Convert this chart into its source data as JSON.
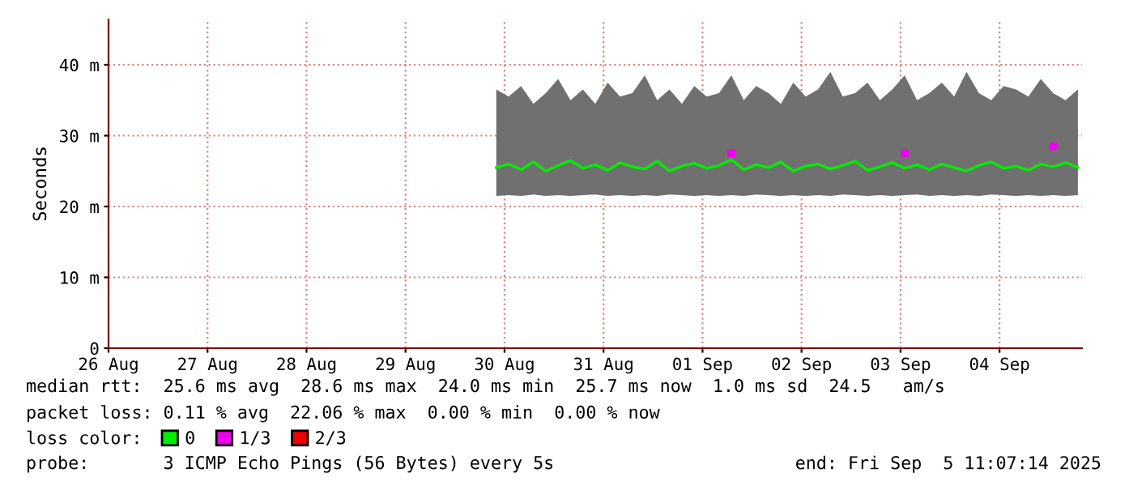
{
  "chart_data": {
    "type": "line",
    "ylabel": "Seconds",
    "x": [
      "2025-08-29T22:00",
      "2025-08-30T01:00",
      "2025-08-30T04:00",
      "2025-08-30T07:00",
      "2025-08-30T10:00",
      "2025-08-30T13:00",
      "2025-08-30T16:00",
      "2025-08-30T19:00",
      "2025-08-30T22:00",
      "2025-08-31T01:00",
      "2025-08-31T04:00",
      "2025-08-31T07:00",
      "2025-08-31T10:00",
      "2025-08-31T13:00",
      "2025-08-31T16:00",
      "2025-08-31T19:00",
      "2025-08-31T22:00",
      "2025-09-01T01:00",
      "2025-09-01T04:00",
      "2025-09-01T07:00",
      "2025-09-01T10:00",
      "2025-09-01T13:00",
      "2025-09-01T16:00",
      "2025-09-01T19:00",
      "2025-09-01T22:00",
      "2025-09-02T01:00",
      "2025-09-02T04:00",
      "2025-09-02T07:00",
      "2025-09-02T10:00",
      "2025-09-02T13:00",
      "2025-09-02T16:00",
      "2025-09-02T19:00",
      "2025-09-02T22:00",
      "2025-09-03T01:00",
      "2025-09-03T04:00",
      "2025-09-03T07:00",
      "2025-09-03T10:00",
      "2025-09-03T13:00",
      "2025-09-03T16:00",
      "2025-09-03T19:00",
      "2025-09-03T22:00",
      "2025-09-04T01:00",
      "2025-09-04T04:00",
      "2025-09-04T07:00",
      "2025-09-04T10:00",
      "2025-09-04T13:00",
      "2025-09-04T16:00",
      "2025-09-04T19:00"
    ],
    "series": [
      {
        "name": "0",
        "color": "#00ee00",
        "values": [
          25.5,
          26.0,
          25.2,
          26.3,
          25.0,
          25.8,
          26.5,
          25.4,
          25.9,
          25.1,
          26.2,
          25.6,
          25.3,
          26.4,
          25.0,
          25.7,
          26.1,
          25.4,
          25.8,
          26.6,
          25.2,
          25.9,
          25.5,
          26.3,
          25.0,
          25.7,
          26.0,
          25.3,
          25.8,
          26.4,
          25.1,
          25.6,
          26.2,
          25.4,
          25.9,
          25.2,
          26.0,
          25.5,
          25.0,
          25.8,
          26.3,
          25.4,
          25.7,
          25.1,
          26.0,
          25.6,
          26.2,
          25.5
        ],
        "lower": [
          21.5,
          21.6,
          21.5,
          21.7,
          21.5,
          21.6,
          21.5,
          21.6,
          21.7,
          21.5,
          21.6,
          21.5,
          21.6,
          21.5,
          21.7,
          21.6,
          21.5,
          21.6,
          21.5,
          21.6,
          21.5,
          21.7,
          21.6,
          21.5,
          21.6,
          21.5,
          21.6,
          21.5,
          21.7,
          21.6,
          21.5,
          21.6,
          21.5,
          21.6,
          21.7,
          21.5,
          21.6,
          21.5,
          21.6,
          21.5,
          21.7,
          21.6,
          21.5,
          21.6,
          21.5,
          21.6,
          21.5,
          21.6
        ],
        "upper": [
          36.5,
          35.5,
          37.0,
          34.5,
          36.0,
          38.0,
          35.0,
          36.5,
          34.5,
          37.5,
          35.5,
          36.0,
          38.5,
          35.0,
          36.5,
          34.5,
          37.0,
          35.5,
          36.0,
          38.5,
          35.0,
          37.0,
          36.0,
          34.5,
          37.5,
          35.5,
          36.5,
          39.0,
          35.5,
          36.0,
          37.5,
          35.0,
          36.5,
          38.5,
          35.0,
          36.0,
          37.5,
          35.5,
          39.0,
          36.0,
          35.0,
          37.0,
          36.5,
          35.5,
          38.0,
          36.0,
          35.0,
          36.5
        ]
      },
      {
        "name": "1/3",
        "color": "#ee00ee",
        "type": "scatter",
        "x": [
          "2025-09-01T07:00",
          "2025-09-03T01:00",
          "2025-09-04T13:00"
        ],
        "values": [
          27.5,
          27.5,
          28.5
        ]
      },
      {
        "name": "2/3",
        "color": "#ee0000",
        "type": "scatter",
        "values": [
          null,
          null,
          null,
          null,
          null,
          null,
          null,
          null,
          null,
          null,
          null,
          null,
          null,
          null,
          null,
          null,
          null,
          null,
          null,
          null,
          null,
          null,
          null,
          null,
          null,
          null,
          null,
          null,
          null,
          null,
          null,
          null,
          null,
          null,
          null,
          null,
          null,
          null,
          null,
          null,
          null,
          null,
          null,
          null,
          null,
          null,
          null,
          null
        ]
      }
    ],
    "legend_title": "loss color:",
    "legend": "bottom",
    "xlim": [
      "2025-08-26",
      "2025-09-04T20:00"
    ],
    "xticks": [
      {
        "value": "2025-08-26",
        "label": "26 Aug"
      },
      {
        "value": "2025-08-27",
        "label": "27 Aug"
      },
      {
        "value": "2025-08-28",
        "label": "28 Aug"
      },
      {
        "value": "2025-08-29",
        "label": "29 Aug"
      },
      {
        "value": "2025-08-30",
        "label": "30 Aug"
      },
      {
        "value": "2025-08-31",
        "label": "31 Aug"
      },
      {
        "value": "2025-09-01",
        "label": "01 Sep"
      },
      {
        "value": "2025-09-02",
        "label": "02 Sep"
      },
      {
        "value": "2025-09-03",
        "label": "03 Sep"
      },
      {
        "value": "2025-09-04",
        "label": "04 Sep"
      }
    ],
    "ylim": [
      0,
      46.4
    ],
    "yticks": [
      0,
      {
        "value": 10,
        "label": "10 m"
      },
      {
        "value": 20,
        "label": "20 m"
      },
      {
        "value": 30,
        "label": "30 m"
      },
      {
        "value": 40,
        "label": "40 m"
      }
    ],
    "grid": true,
    "annotations": [
      "median rtt:  25.6 ms avg  28.6 ms max  24.0 ms min  25.7 ms now  1.0 ms sd  24.5   am/s",
      "packet loss: 0.11 % avg  22.06 % max  0.00 % min  0.00 % now",
      "probe:       3 ICMP Echo Pings (56 Bytes) every 5s",
      "end: Fri Sep  5 11:07:14 2025"
    ]
  }
}
